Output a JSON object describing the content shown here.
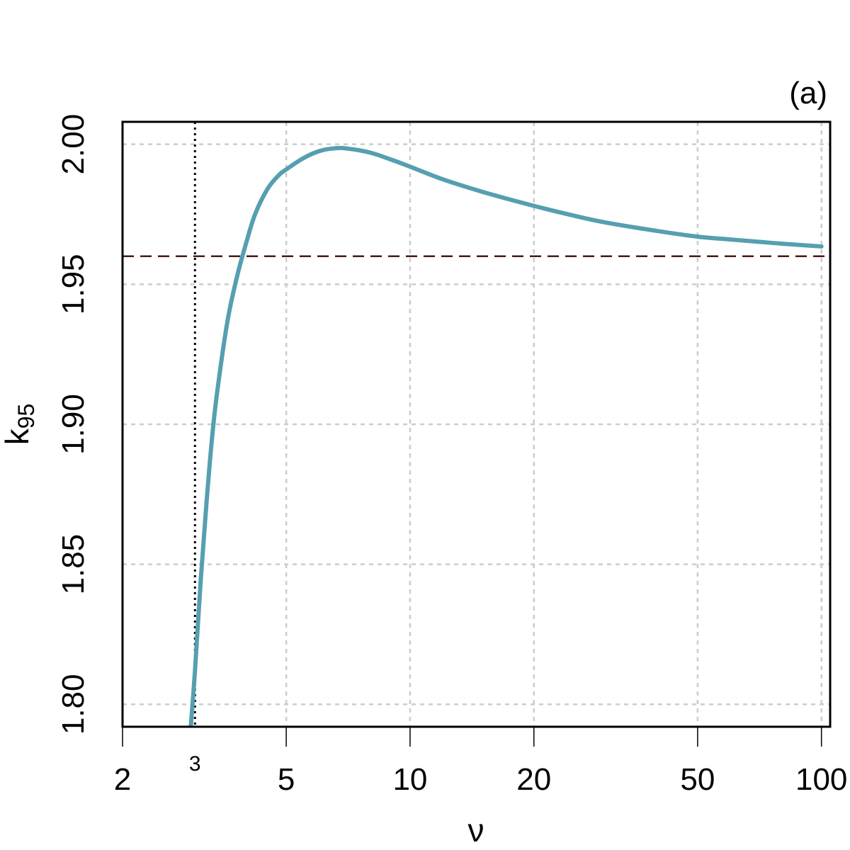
{
  "chart_data": {
    "type": "line",
    "panel_label": "(a)",
    "xlabel": "ν",
    "ylabel": {
      "base": "k",
      "subscript": "95"
    },
    "x_scale": "log",
    "xlim": [
      2,
      105
    ],
    "ylim": [
      1.792,
      2.008
    ],
    "x_ticks": [
      2,
      5,
      10,
      20,
      50,
      100
    ],
    "x_tick_labels": [
      "2",
      "5",
      "10",
      "20",
      "50",
      "100"
    ],
    "y_ticks": [
      1.8,
      1.85,
      1.9,
      1.95,
      2.0
    ],
    "y_tick_labels": [
      "1.80",
      "1.85",
      "1.90",
      "1.95",
      "2.00"
    ],
    "grid": true,
    "series": [
      {
        "color": "#559fb0",
        "x": [
          2.93,
          3.0,
          3.1,
          3.2,
          3.3,
          3.4,
          3.6,
          3.8,
          4.0,
          4.2,
          4.5,
          4.8,
          5.0,
          5.5,
          6.0,
          6.5,
          7.0,
          8.0,
          9.0,
          10,
          12,
          15,
          20,
          25,
          30,
          40,
          50,
          60,
          70,
          80,
          100
        ],
        "y": [
          1.792,
          1.812,
          1.845,
          1.872,
          1.895,
          1.912,
          1.937,
          1.953,
          1.965,
          1.975,
          1.984,
          1.989,
          1.991,
          1.995,
          1.9975,
          1.9985,
          1.9985,
          1.997,
          1.9945,
          1.992,
          1.9875,
          1.983,
          1.978,
          1.9745,
          1.972,
          1.969,
          1.967,
          1.966,
          1.9652,
          1.9645,
          1.9635
        ]
      }
    ],
    "reference_lines": [
      {
        "orientation": "horizontal",
        "value": 1.96,
        "style": "dashed",
        "color": "#4a1a12"
      },
      {
        "orientation": "vertical",
        "value": 3,
        "style": "dotted",
        "color": "#000000",
        "label": "3"
      }
    ]
  }
}
